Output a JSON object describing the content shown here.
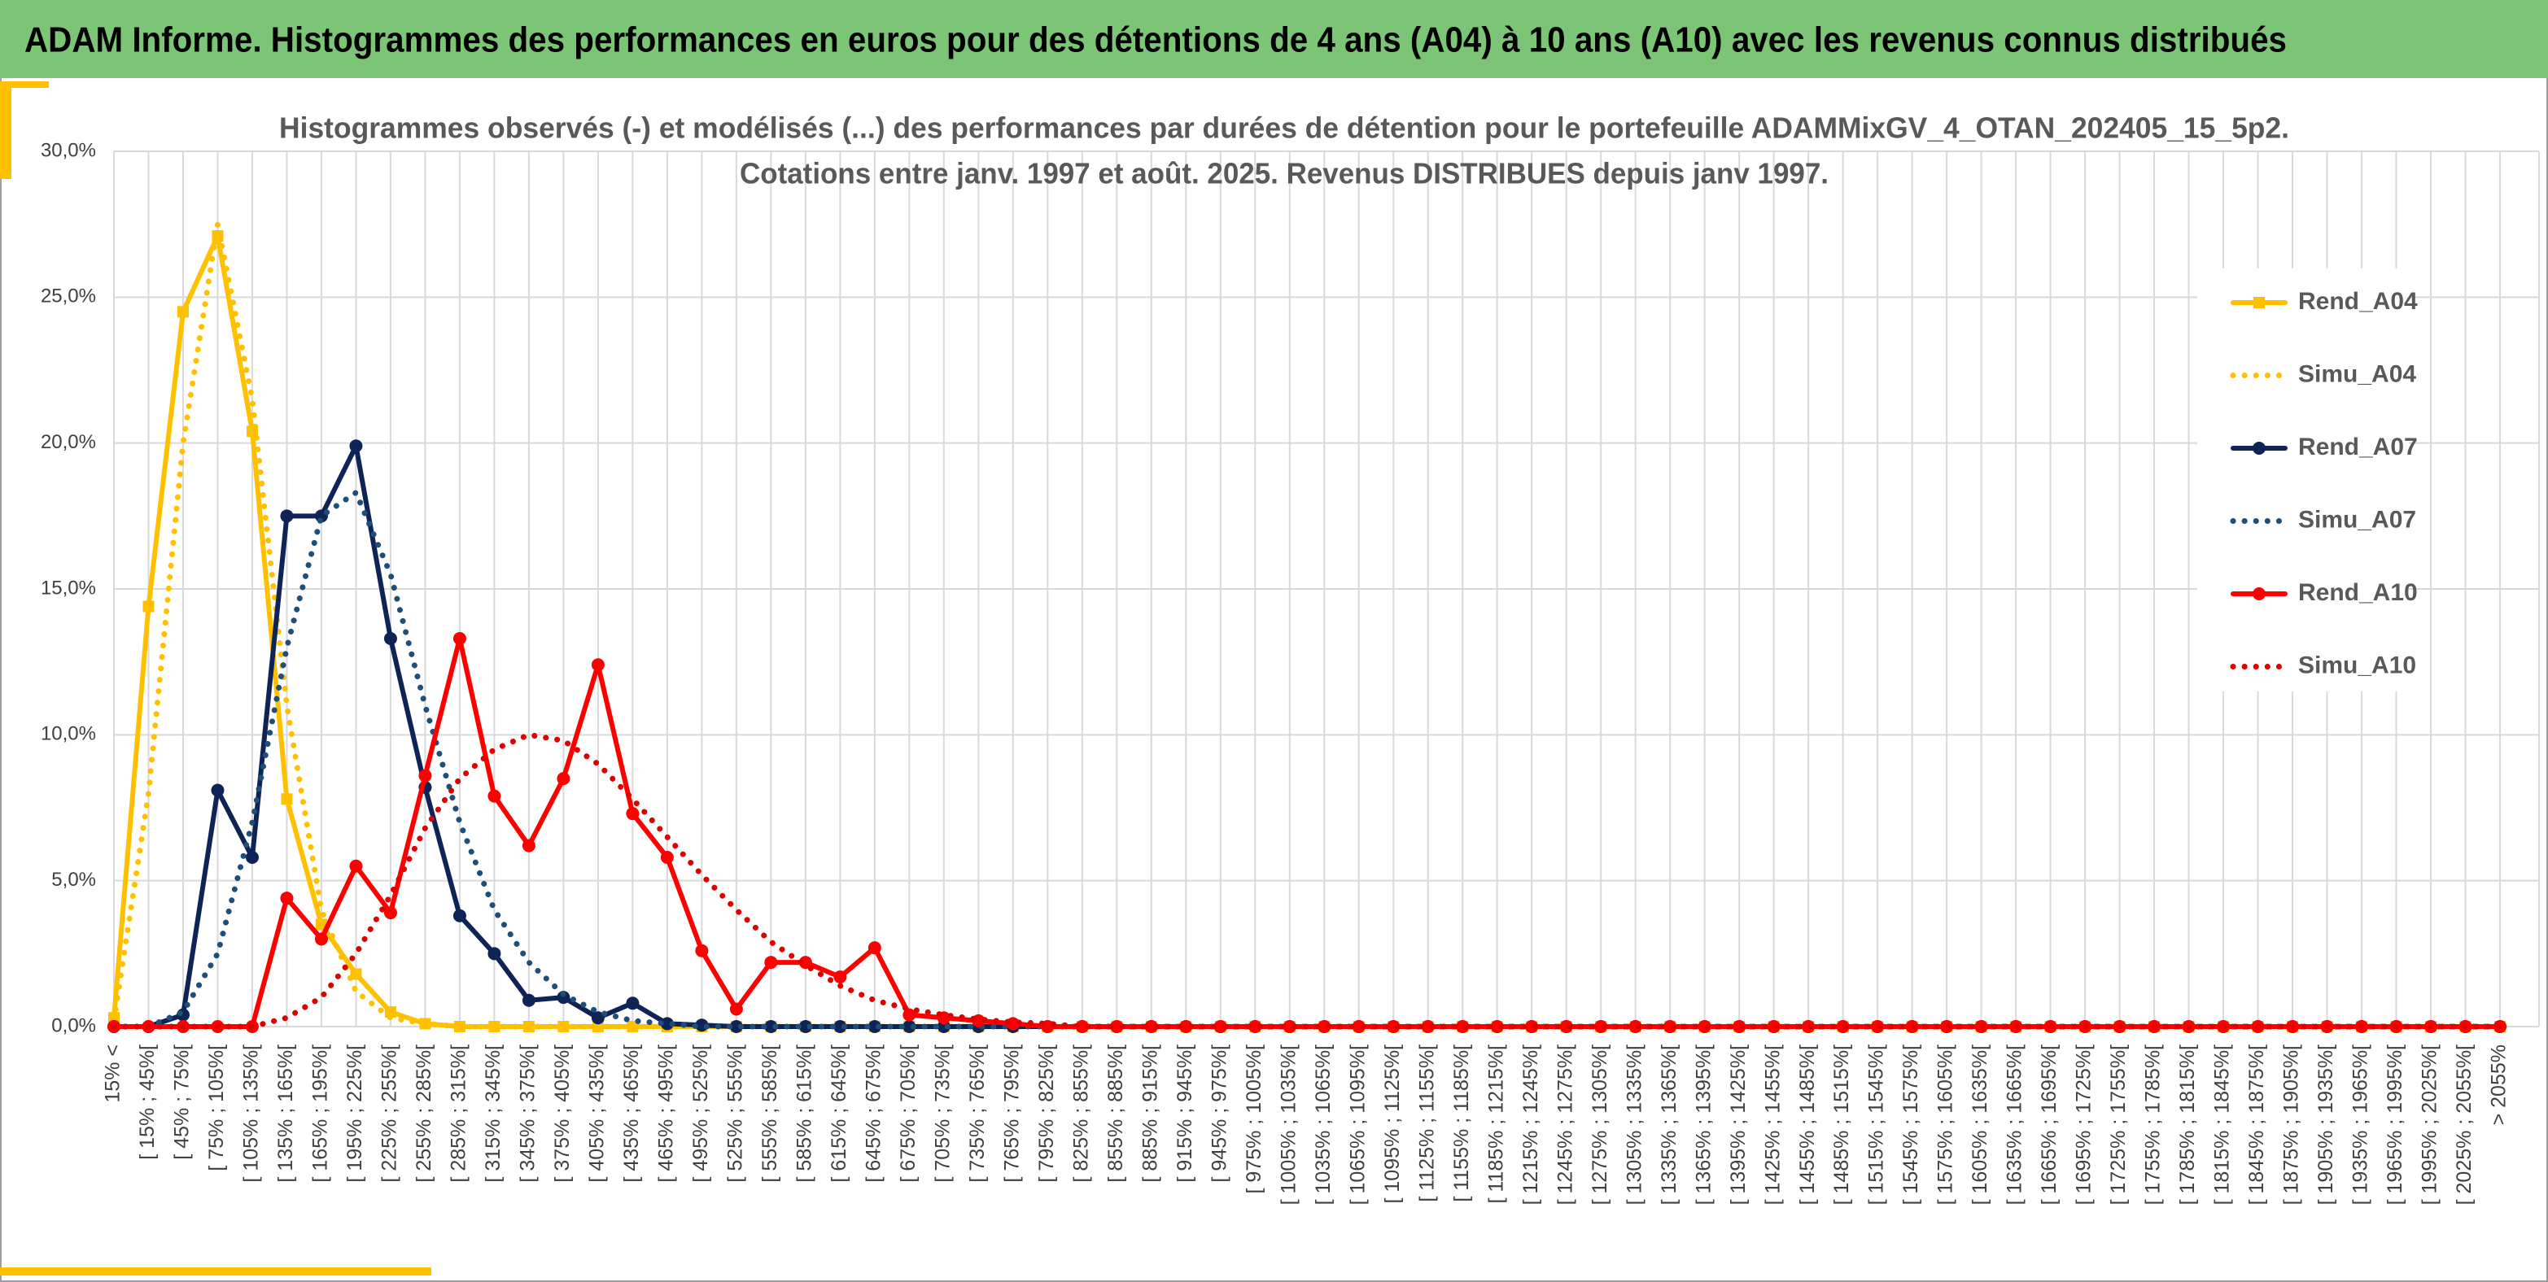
{
  "header": "ADAM Informe. Histogrammes des performances en euros pour des détentions de 4 ans (A04) à 10 ans (A10) avec les revenus connus distribués",
  "chart_data": {
    "type": "line",
    "title": [
      "Histogrammes observés (-) et modélisés (...) des performances par durées de détention pour le portefeuille ADAMMixGV_4_OTAN_202405_15_5p2.",
      "Cotations entre janv. 1997 et août. 2025. Revenus DISTRIBUES depuis janv 1997."
    ],
    "categories": [
      "15% <",
      "[ 15% ; 45%[",
      "[ 45% ; 75%[",
      "[ 75% ; 105%[",
      "[ 105% ; 135%[",
      "[ 135% ; 165%[",
      "[ 165% ; 195%[",
      "[ 195% ; 225%[",
      "[ 225% ; 255%[",
      "[ 255% ; 285%[",
      "[ 285% ; 315%[",
      "[ 315% ; 345%[",
      "[ 345% ; 375%[",
      "[ 375% ; 405%[",
      "[ 405% ; 435%[",
      "[ 435% ; 465%[",
      "[ 465% ; 495%[",
      "[ 495% ; 525%[",
      "[ 525% ; 555%[",
      "[ 555% ; 585%[",
      "[ 585% ; 615%[",
      "[ 615% ; 645%[",
      "[ 645% ; 675%[",
      "[ 675% ; 705%[",
      "[ 705% ; 735%[",
      "[ 735% ; 765%[",
      "[ 765% ; 795%[",
      "[ 795% ; 825%[",
      "[ 825% ; 855%[",
      "[ 855% ; 885%[",
      "[ 885% ; 915%[",
      "[ 915% ; 945%[",
      "[ 945% ; 975%[",
      "[ 975% ; 1005%[",
      "[ 1005% ; 1035%[",
      "[ 1035% ; 1065%[",
      "[ 1065% ; 1095%[",
      "[ 1095% ; 1125%[",
      "[ 1125% ; 1155%[",
      "[ 1155% ; 1185%[",
      "[ 1185% ; 1215%[",
      "[ 1215% ; 1245%[",
      "[ 1245% ; 1275%[",
      "[ 1275% ; 1305%[",
      "[ 1305% ; 1335%[",
      "[ 1335% ; 1365%[",
      "[ 1365% ; 1395%[",
      "[ 1395% ; 1425%[",
      "[ 1425% ; 1455%[",
      "[ 1455% ; 1485%[",
      "[ 1485% ; 1515%[",
      "[ 1515% ; 1545%[",
      "[ 1545% ; 1575%[",
      "[ 1575% ; 1605%[",
      "[ 1605% ; 1635%[",
      "[ 1635% ; 1665%[",
      "[ 1665% ; 1695%[",
      "[ 1695% ; 1725%[",
      "[ 1725% ; 1755%[",
      "[ 1755% ; 1785%[",
      "[ 1785% ; 1815%[",
      "[ 1815% ; 1845%[",
      "[ 1845% ; 1875%[",
      "[ 1875% ; 1905%[",
      "[ 1905% ; 1935%[",
      "[ 1935% ; 1965%[",
      "[ 1965% ; 1995%[",
      "[ 1995% ; 2025%[",
      "[ 2025% ; 2055%[",
      "> 2055%"
    ],
    "series": [
      {
        "name": "Rend_A04",
        "color": "#ffc000",
        "style": "solid",
        "marker": "square",
        "values": [
          0.3,
          14.4,
          24.5,
          27.1,
          20.4,
          7.8,
          3.5,
          1.8,
          0.5,
          0.1,
          0,
          0,
          0,
          0,
          0,
          0,
          0,
          0,
          0,
          0,
          0,
          0,
          0,
          0,
          0,
          0,
          0,
          0,
          0,
          0,
          0,
          0,
          0,
          0,
          0,
          0,
          0,
          0,
          0,
          0,
          0,
          0,
          0,
          0,
          0,
          0,
          0,
          0,
          0,
          0,
          0,
          0,
          0,
          0,
          0,
          0,
          0,
          0,
          0,
          0,
          0,
          0,
          0,
          0,
          0,
          0,
          0,
          0,
          0,
          0
        ]
      },
      {
        "name": "Simu_A04",
        "color": "#ffc000",
        "style": "dotted",
        "values": [
          0.2,
          8,
          20,
          27.5,
          21.5,
          11,
          4,
          1.2,
          0.3,
          0.1,
          0,
          0,
          0,
          0,
          0,
          0,
          0,
          0,
          0,
          0,
          0,
          0,
          0,
          0,
          0,
          0,
          0,
          0,
          0,
          0,
          0,
          0,
          0,
          0,
          0,
          0,
          0,
          0,
          0,
          0,
          0,
          0,
          0,
          0,
          0,
          0,
          0,
          0,
          0,
          0,
          0,
          0,
          0,
          0,
          0,
          0,
          0,
          0,
          0,
          0,
          0,
          0,
          0,
          0,
          0,
          0,
          0,
          0,
          0,
          0
        ]
      },
      {
        "name": "Rend_A07",
        "color": "#0e2356",
        "style": "solid",
        "marker": "circle",
        "values": [
          0,
          0,
          0.4,
          8.1,
          5.8,
          17.5,
          17.5,
          19.9,
          13.3,
          8.2,
          3.8,
          2.5,
          0.9,
          1.0,
          0.3,
          0.8,
          0.1,
          0.05,
          0,
          0,
          0,
          0,
          0,
          0,
          0,
          0,
          0,
          0,
          0,
          0,
          0,
          0,
          0,
          0,
          0,
          0,
          0,
          0,
          0,
          0,
          0,
          0,
          0,
          0,
          0,
          0,
          0,
          0,
          0,
          0,
          0,
          0,
          0,
          0,
          0,
          0,
          0,
          0,
          0,
          0,
          0,
          0,
          0,
          0,
          0,
          0,
          0,
          0,
          0,
          0
        ]
      },
      {
        "name": "Simu_A07",
        "color": "#1f4e79",
        "style": "dotted",
        "values": [
          0,
          0,
          0.5,
          2.5,
          7,
          13,
          17.5,
          18.3,
          15.5,
          11,
          7,
          4,
          2.2,
          1.1,
          0.5,
          0.2,
          0.1,
          0,
          0,
          0,
          0,
          0,
          0,
          0,
          0,
          0,
          0,
          0,
          0,
          0,
          0,
          0,
          0,
          0,
          0,
          0,
          0,
          0,
          0,
          0,
          0,
          0,
          0,
          0,
          0,
          0,
          0,
          0,
          0,
          0,
          0,
          0,
          0,
          0,
          0,
          0,
          0,
          0,
          0,
          0,
          0,
          0,
          0,
          0,
          0,
          0,
          0,
          0,
          0,
          0
        ]
      },
      {
        "name": "Rend_A10",
        "color": "#ff0000",
        "style": "solid",
        "marker": "circle",
        "values": [
          0,
          0,
          0,
          0,
          0,
          4.4,
          3.0,
          5.5,
          3.9,
          8.6,
          13.3,
          7.9,
          6.2,
          8.5,
          12.4,
          7.3,
          5.8,
          2.6,
          0.6,
          2.2,
          2.2,
          1.7,
          2.7,
          0.4,
          0.3,
          0.2,
          0.1,
          0,
          0,
          0,
          0,
          0,
          0,
          0,
          0,
          0,
          0,
          0,
          0,
          0,
          0,
          0,
          0,
          0,
          0,
          0,
          0,
          0,
          0,
          0,
          0,
          0,
          0,
          0,
          0,
          0,
          0,
          0,
          0,
          0,
          0,
          0,
          0,
          0,
          0,
          0,
          0,
          0,
          0,
          0
        ]
      },
      {
        "name": "Simu_A10",
        "color": "#e00000",
        "style": "dotted",
        "values": [
          0,
          0,
          0,
          0,
          0,
          0.3,
          1,
          2.5,
          4.5,
          6.8,
          8.5,
          9.5,
          10,
          9.8,
          9,
          7.8,
          6.5,
          5.2,
          4,
          2.9,
          2.1,
          1.4,
          0.9,
          0.6,
          0.4,
          0.25,
          0.15,
          0.1,
          0,
          0,
          0,
          0,
          0,
          0,
          0,
          0,
          0,
          0,
          0,
          0,
          0,
          0,
          0,
          0,
          0,
          0,
          0,
          0,
          0,
          0,
          0,
          0,
          0,
          0,
          0,
          0,
          0,
          0,
          0,
          0,
          0,
          0,
          0,
          0,
          0,
          0,
          0,
          0,
          0,
          0
        ]
      }
    ],
    "ylim": [
      0,
      30
    ],
    "yticks": [
      {
        "value": 0,
        "label": "0,0%"
      },
      {
        "value": 5,
        "label": "5,0%"
      },
      {
        "value": 10,
        "label": "10,0%"
      },
      {
        "value": 15,
        "label": "15,0%"
      },
      {
        "value": 20,
        "label": "20,0%"
      },
      {
        "value": 25,
        "label": "25,0%"
      },
      {
        "value": 30,
        "label": "30,0%"
      }
    ],
    "grid": true,
    "legend": "right"
  }
}
